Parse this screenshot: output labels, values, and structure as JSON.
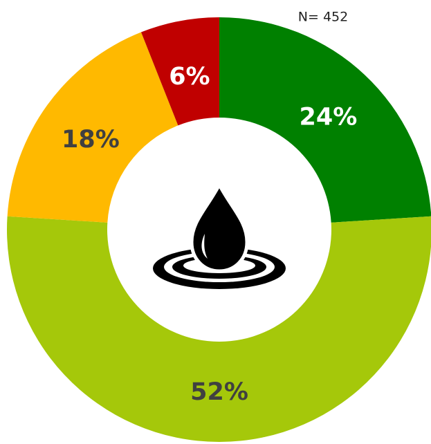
{
  "chart_data": {
    "type": "donut",
    "annotation": "N= 452",
    "categories": [
      null,
      null,
      null,
      null
    ],
    "values": [
      24,
      52,
      18,
      6
    ],
    "value_labels": [
      "24%",
      "52%",
      "18%",
      "6%"
    ],
    "colors": [
      "#008000",
      "#a5c80a",
      "#ffb900",
      "#c00000"
    ],
    "label_colors": [
      "#ffffff",
      "#404040",
      "#404040",
      "#ffffff"
    ]
  }
}
